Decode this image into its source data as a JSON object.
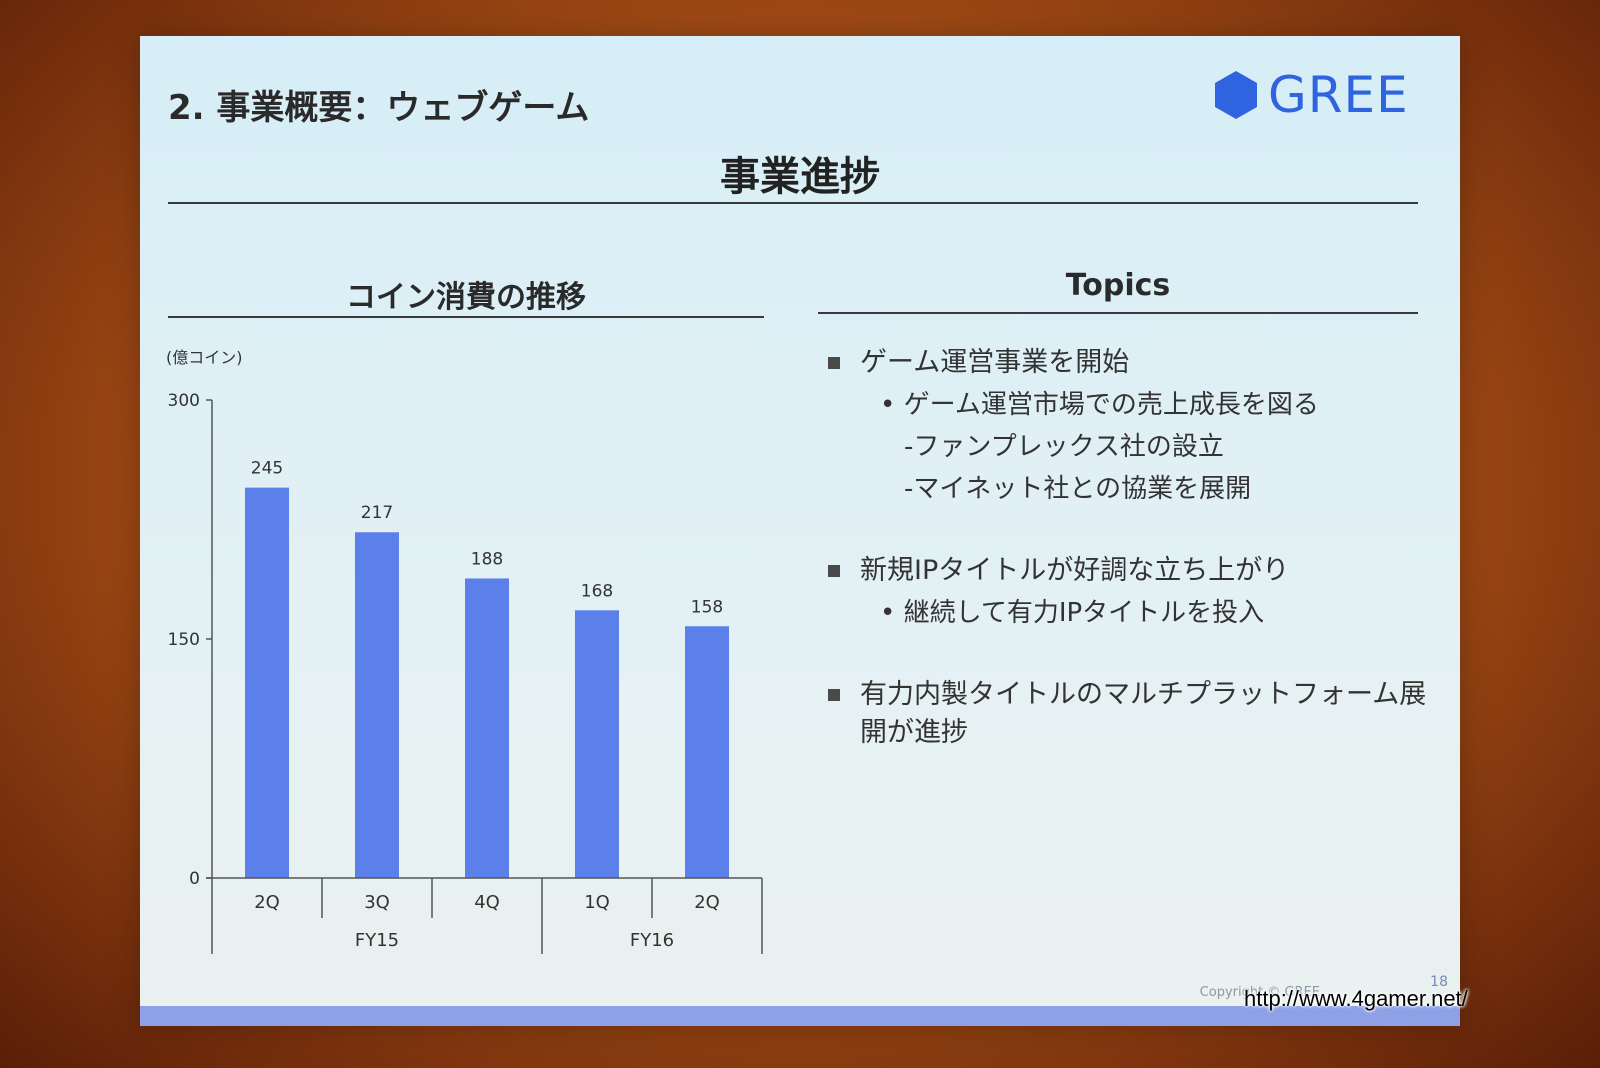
{
  "slide": {
    "section_title": "2. 事業概要：ウェブゲーム",
    "logo_text": "GREE",
    "main_title": "事業進捗",
    "page_number": "18",
    "copyright": "Copyright © GREE"
  },
  "watermark": "http://www.4gamer.net/",
  "chart_panel": {
    "title": "コイン消費の推移",
    "unit": "(億コイン)"
  },
  "chart_data": {
    "type": "bar",
    "categories": [
      "2Q",
      "3Q",
      "4Q",
      "1Q",
      "2Q"
    ],
    "groups": [
      {
        "label": "FY15",
        "categories": [
          "2Q",
          "3Q",
          "4Q"
        ]
      },
      {
        "label": "FY16",
        "categories": [
          "1Q",
          "2Q"
        ]
      }
    ],
    "values": [
      245,
      217,
      188,
      168,
      158
    ],
    "ylim": [
      0,
      300
    ],
    "yticks": [
      0,
      150,
      300
    ],
    "bar_color": "#5b80ea",
    "grid": false,
    "legend": false
  },
  "topics": {
    "title": "Topics",
    "items": [
      {
        "text": "ゲーム運営事業を開始",
        "subs": [
          {
            "text": "• ゲーム運営市場での売上成長を図る",
            "level": 2
          },
          {
            "text": "-ファンプレックス社の設立",
            "level": 3
          },
          {
            "text": "-マイネット社との協業を展開",
            "level": 3
          }
        ]
      },
      {
        "text": "新規IPタイトルが好調な立ち上がり",
        "subs": [
          {
            "text": "• 継続して有力IPタイトルを投入",
            "level": 2
          }
        ]
      },
      {
        "text": "有力内製タイトルのマルチプラットフォーム展開が進捗",
        "subs": []
      }
    ]
  }
}
